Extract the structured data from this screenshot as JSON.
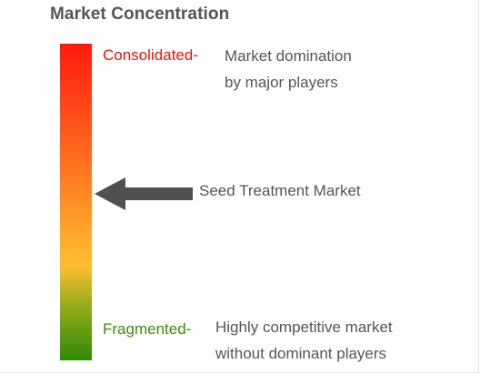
{
  "title": "Market Concentration",
  "colors": {
    "consolidated": "#e8160c",
    "fragmented": "#3f8a0a",
    "gradient_top": "#ff1a10",
    "gradient_mid": "#ffbf30",
    "gradient_bottom": "#2e8a06",
    "arrow": "#505050"
  },
  "top": {
    "label": "Consolidated-",
    "description": [
      "Market domination",
      "by major players"
    ]
  },
  "bottom": {
    "label": "Fragmented-",
    "description": [
      "Highly competitive market",
      "without dominant players"
    ]
  },
  "marker": {
    "label": "Seed Treatment Market",
    "icon": "arrow-left-icon"
  }
}
